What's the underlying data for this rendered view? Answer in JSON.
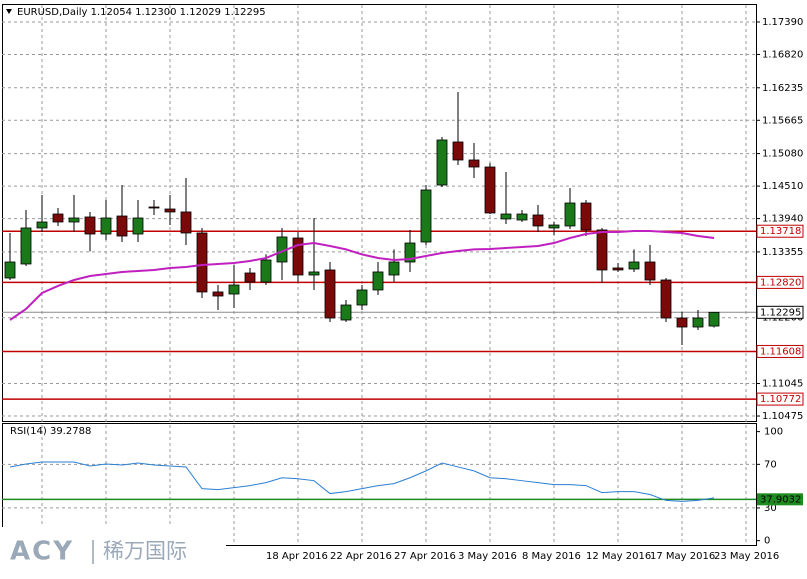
{
  "header": {
    "title": "EURUSD,Daily  1.12054 1.12300 1.12029 1.12295"
  },
  "logo": {
    "brand": "ACY",
    "name": "稀万国际"
  },
  "chart_data": [
    {
      "type": "candlestick",
      "categories": [
        null,
        null,
        null,
        null,
        null,
        null,
        null,
        null,
        null,
        null,
        null,
        null,
        null,
        null,
        null,
        null,
        "18 Apr 2016",
        null,
        null,
        null,
        "22 Apr 2016",
        null,
        null,
        null,
        "27 Apr 2016",
        null,
        null,
        null,
        "3 May 2016",
        null,
        null,
        null,
        "8 May 2016",
        null,
        null,
        null,
        "12 May 2016",
        null,
        null,
        null,
        "17 May 2016",
        null,
        null,
        null,
        "23 May 2016"
      ],
      "open": [
        1.12897,
        1.13143,
        1.13775,
        1.1402,
        1.1388,
        1.13968,
        1.13669,
        1.13985,
        1.13669,
        1.14143,
        1.14108,
        1.14056,
        1.13687,
        1.12652,
        1.12616,
        1.12985,
        1.12827,
        1.13178,
        1.13599,
        1.1295,
        1.13038,
        1.1216,
        1.12423,
        1.12687,
        1.1295,
        1.13178,
        1.13529,
        1.14529,
        1.15284,
        1.14968,
        1.14845,
        1.13933,
        1.13915,
        1.14003,
        1.13775,
        1.1381,
        1.14213,
        1.1374,
        1.13073,
        1.13055,
        1.13178,
        1.12862,
        1.12195,
        1.12037,
        1.12054
      ],
      "high": [
        1.13687,
        1.14091,
        1.14354,
        1.14126,
        1.14354,
        1.14056,
        1.14266,
        1.14529,
        1.14266,
        1.14266,
        1.14354,
        1.14652,
        1.13775,
        1.12774,
        1.13125,
        1.13073,
        1.13311,
        1.13775,
        1.13705,
        1.1395,
        1.13178,
        1.12511,
        1.12774,
        1.13178,
        1.13399,
        1.1374,
        1.14529,
        1.15372,
        1.16162,
        1.15266,
        1.14915,
        1.14758,
        1.14091,
        1.14178,
        1.1388,
        1.14477,
        1.14266,
        1.13775,
        1.1316,
        1.13399,
        1.13476,
        1.12897,
        1.12301,
        1.12336,
        1.123
      ],
      "low": [
        1.12862,
        1.13108,
        1.13705,
        1.1381,
        1.13705,
        1.13364,
        1.13564,
        1.13529,
        1.13529,
        1.14003,
        1.13827,
        1.13476,
        1.12546,
        1.12336,
        1.12371,
        1.12687,
        1.12774,
        1.12862,
        1.12827,
        1.12687,
        1.12125,
        1.12125,
        1.12336,
        1.12599,
        1.12827,
        1.13003,
        1.13476,
        1.14494,
        1.1488,
        1.14652,
        1.1402,
        1.13845,
        1.1388,
        1.13705,
        1.13652,
        1.13757,
        1.13634,
        1.12809,
        1.13003,
        1.13003,
        1.12774,
        1.12125,
        1.11721,
        1.11985,
        1.12029
      ],
      "close": [
        1.13178,
        1.13775,
        1.1388,
        1.1388,
        1.1395,
        1.13669,
        1.1395,
        1.13634,
        1.1395,
        1.14126,
        1.14056,
        1.13687,
        1.12652,
        1.12581,
        1.12774,
        1.12827,
        1.13213,
        1.13617,
        1.1295,
        1.13003,
        1.12195,
        1.12423,
        1.12687,
        1.13003,
        1.13178,
        1.13511,
        1.14442,
        1.15319,
        1.14968,
        1.14845,
        1.14038,
        1.1402,
        1.1402,
        1.1381,
        1.13827,
        1.14213,
        1.1374,
        1.13038,
        1.13038,
        1.13178,
        1.12862,
        1.12195,
        1.12037,
        1.12195,
        1.12295
      ],
      "bull_color": "#1a7a1a",
      "bear_color": "#7a0a0a",
      "ma": {
        "color": "#c020c0",
        "values": [
          1.1216,
          1.12353,
          1.12634,
          1.12757,
          1.12862,
          1.12932,
          1.12967,
          1.13003,
          1.1302,
          1.13038,
          1.13073,
          1.1309,
          1.13125,
          1.13143,
          1.1316,
          1.13196,
          1.13248,
          1.13364,
          1.13476,
          1.13511,
          1.13459,
          1.13399,
          1.13311,
          1.13248,
          1.13213,
          1.13231,
          1.13283,
          1.13336,
          1.13371,
          1.13399,
          1.13406,
          1.13424,
          1.13441,
          1.13459,
          1.13511,
          1.13599,
          1.13669,
          1.13705,
          1.13705,
          1.13722,
          1.13722,
          1.13705,
          1.13687,
          1.13634,
          1.13599
        ]
      },
      "levels": [
        1.13718,
        {
          "value": 1.1282,
          "label": "1.12820"
        },
        1.11608,
        1.10772
      ],
      "level_color": "#c00000",
      "last": 1.12295,
      "ylim": [
        1.1037,
        1.17688
      ],
      "yticks": [
        {
          "value": 1.1739,
          "label": "1.17390"
        },
        {
          "value": 1.1682,
          "label": "1.16820"
        },
        1.16235,
        1.15665,
        {
          "value": 1.1508,
          "label": "1.15080"
        },
        {
          "value": 1.1451,
          "label": "1.14510"
        },
        {
          "value": 1.1394,
          "label": "1.13940"
        },
        1.13355,
        {
          "value": 1.122,
          "label": "1.12200"
        },
        1.11045,
        1.10475
      ],
      "grid": true
    },
    {
      "type": "line",
      "title": "RSI(14) 39.2788",
      "values": [
        67.6,
        70.3,
        72.1,
        72.1,
        72.1,
        68.5,
        70.3,
        69.4,
        71.2,
        69.4,
        68.5,
        67.6,
        47.7,
        46.8,
        48.6,
        50.5,
        53.2,
        57.7,
        56.8,
        55.0,
        43.2,
        45.0,
        47.7,
        50.5,
        52.3,
        57.7,
        64.0,
        71.2,
        67.6,
        64.0,
        57.7,
        56.8,
        55.0,
        53.2,
        51.4,
        51.4,
        50.5,
        44.1,
        45.0,
        45.0,
        42.3,
        36.9,
        36.0,
        36.9,
        39.2788
      ],
      "color": "#2a7fd4",
      "level": 37.9032,
      "level_color": "#1f8a1f",
      "ylim": [
        -4,
        107
      ],
      "yticks": [
        0,
        30,
        70,
        100
      ],
      "grid": true
    }
  ]
}
